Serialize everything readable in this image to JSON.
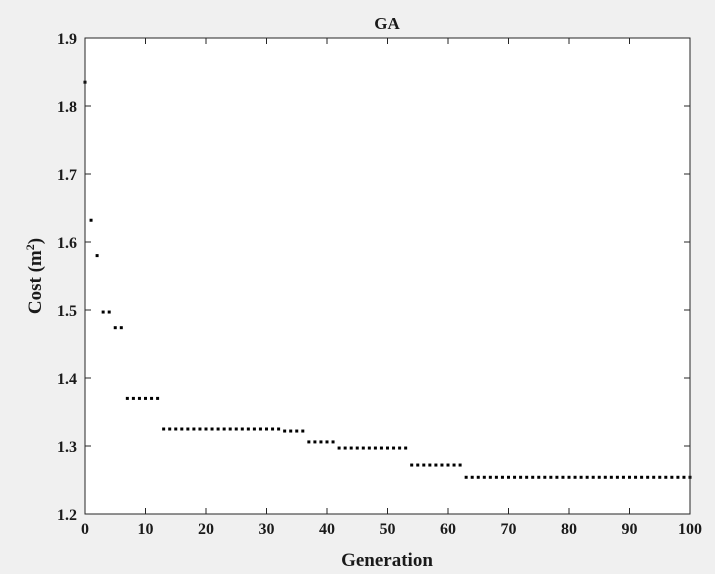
{
  "chart_data": {
    "type": "scatter",
    "title": "GA",
    "xlabel": "Generation",
    "ylabel_text": "Cost (m",
    "ylabel_sup": "2",
    "ylabel_close": ")",
    "xlim": [
      0,
      100
    ],
    "ylim": [
      1.2,
      1.9
    ],
    "xticks": [
      0,
      10,
      20,
      30,
      40,
      50,
      60,
      70,
      80,
      90,
      100
    ],
    "yticks": [
      1.2,
      1.3,
      1.4,
      1.5,
      1.6,
      1.7,
      1.8,
      1.9
    ],
    "xtick_labels": [
      "0",
      "10",
      "20",
      "30",
      "40",
      "50",
      "60",
      "70",
      "80",
      "90",
      "100"
    ],
    "ytick_labels": [
      "1.2",
      "1.3",
      "1.4",
      "1.5",
      "1.6",
      "1.7",
      "1.8",
      "1.9"
    ],
    "grid": false,
    "marker_color": "#000000",
    "series": [
      {
        "x": [
          0,
          1,
          2,
          3,
          4,
          5,
          6,
          7,
          8,
          9,
          10,
          11,
          12,
          13,
          14,
          15,
          16,
          17,
          18,
          19,
          20,
          21,
          22,
          23,
          24,
          25,
          26,
          27,
          28,
          29,
          30,
          31,
          32,
          33,
          34,
          35,
          36,
          37,
          38,
          39,
          40,
          41,
          42,
          43,
          44,
          45,
          46,
          47,
          48,
          49,
          50,
          51,
          52,
          53,
          54,
          55,
          56,
          57,
          58,
          59,
          60,
          61,
          62,
          63,
          64,
          65,
          66,
          67,
          68,
          69,
          70,
          71,
          72,
          73,
          74,
          75,
          76,
          77,
          78,
          79,
          80,
          81,
          82,
          83,
          84,
          85,
          86,
          87,
          88,
          89,
          90,
          91,
          92,
          93,
          94,
          95,
          96,
          97,
          98,
          99,
          100
        ],
        "y": [
          1.835,
          1.632,
          1.58,
          1.497,
          1.497,
          1.474,
          1.474,
          1.37,
          1.37,
          1.37,
          1.37,
          1.37,
          1.37,
          1.325,
          1.325,
          1.325,
          1.325,
          1.325,
          1.325,
          1.325,
          1.325,
          1.325,
          1.325,
          1.325,
          1.325,
          1.325,
          1.325,
          1.325,
          1.325,
          1.325,
          1.325,
          1.325,
          1.325,
          1.322,
          1.322,
          1.322,
          1.322,
          1.306,
          1.306,
          1.306,
          1.306,
          1.306,
          1.297,
          1.297,
          1.297,
          1.297,
          1.297,
          1.297,
          1.297,
          1.297,
          1.297,
          1.297,
          1.297,
          1.297,
          1.272,
          1.272,
          1.272,
          1.272,
          1.272,
          1.272,
          1.272,
          1.272,
          1.272,
          1.254,
          1.254,
          1.254,
          1.254,
          1.254,
          1.254,
          1.254,
          1.254,
          1.254,
          1.254,
          1.254,
          1.254,
          1.254,
          1.254,
          1.254,
          1.254,
          1.254,
          1.254,
          1.254,
          1.254,
          1.254,
          1.254,
          1.254,
          1.254,
          1.254,
          1.254,
          1.254,
          1.254,
          1.254,
          1.254,
          1.254,
          1.254,
          1.254,
          1.254,
          1.254,
          1.254,
          1.254,
          1.254
        ]
      }
    ]
  }
}
